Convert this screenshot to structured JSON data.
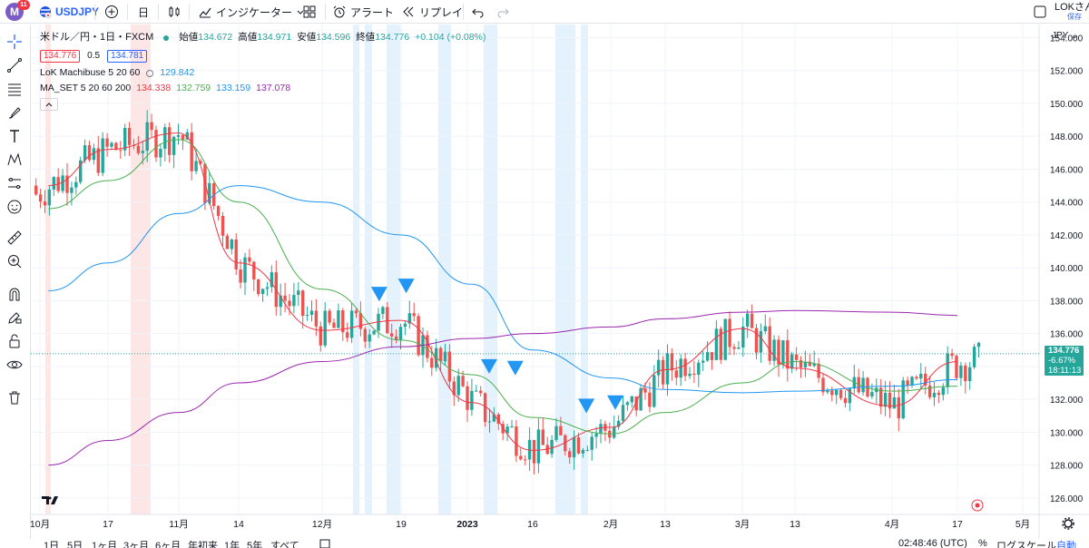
{
  "topbar": {
    "avatar_letter": "M",
    "notification_count": "11",
    "symbol": "USDJPY",
    "interval": "日",
    "indicators_label": "インジケーター",
    "alert_label": "アラート",
    "replay_label": "リプレイ",
    "user_name": "LOKさん",
    "save_label": "保存"
  },
  "legend": {
    "title": "米ドル／円・1日・FXCM",
    "open_label": "始値",
    "open": "134.672",
    "high_label": "高値",
    "high": "134.971",
    "low_label": "安値",
    "low": "134.596",
    "close_label": "終値",
    "close": "134.776",
    "change": "+0.104 (+0.08%)",
    "bid": "134.776",
    "spread": "0.5",
    "ask": "134.781",
    "ind1_name": "LoK Machibuse 5 20 60",
    "ind1_value": "129.842",
    "ind2_name": "MA_SET 5 20 60 200",
    "ind2_v1": "134.338",
    "ind2_v2": "132.759",
    "ind2_v3": "133.159",
    "ind2_v4": "137.078",
    "collapse_icon": "chevron-up-icon"
  },
  "price_axis": {
    "currency": "JPY",
    "ticks": [
      "154.000",
      "152.000",
      "150.000",
      "148.000",
      "146.000",
      "144.000",
      "142.000",
      "140.000",
      "138.000",
      "136.000",
      "134.000",
      "132.000",
      "130.000",
      "128.000",
      "126.000"
    ],
    "last_price": "134.776",
    "last_change": "-6.67%",
    "countdown": "18:11:13"
  },
  "time_axis": {
    "labels": [
      "10月",
      "17",
      "11月",
      "14",
      "12月",
      "19",
      "2023",
      "16",
      "2月",
      "13",
      "3月",
      "13",
      "4月",
      "17",
      "5月"
    ]
  },
  "bottombar": {
    "ranges": [
      "1日",
      "5日",
      "1ヶ月",
      "3ヶ月",
      "6ヶ月",
      "年初来",
      "1年",
      "5年",
      "すべて"
    ],
    "clock": "02:48:46 (UTC)",
    "percent": "%",
    "log_label": "ログスケール",
    "auto_label": "自動"
  },
  "colors": {
    "up": "#26a69a",
    "down": "#ef5350",
    "ma5": "#f23645",
    "ma20": "#4caf50",
    "ma60": "#2196f3",
    "ma200": "#9c27b0",
    "marker": "#2196f3"
  },
  "chart_data": {
    "type": "candlestick",
    "symbol": "USDJPY",
    "timeframe": "1D",
    "ylim": [
      125,
      154.8
    ],
    "series": [
      {
        "name": "5",
        "x": [
          "2022-10-03",
          "2022-10-17",
          "2022-11-01",
          "2022-11-14",
          "2022-12-01",
          "2022-12-19",
          "2023-01-02",
          "2023-01-16",
          "2023-02-01",
          "2023-02-13",
          "2023-03-01",
          "2023-03-13",
          "2023-04-03",
          "2023-04-17"
        ],
        "values": [
          145.0,
          147.2,
          148.2,
          140.3,
          136.2,
          136.8,
          131.8,
          128.9,
          130.3,
          133.8,
          136.3,
          133.9,
          131.6,
          134.3
        ]
      },
      {
        "name": "20",
        "x": [
          "2022-10-03",
          "2022-10-17",
          "2022-11-01",
          "2022-11-14",
          "2022-12-01",
          "2022-12-19",
          "2023-01-02",
          "2023-01-16",
          "2023-02-01",
          "2023-02-13",
          "2023-03-01",
          "2023-03-13",
          "2023-04-03",
          "2023-04-17"
        ],
        "values": [
          143.6,
          145.3,
          147.8,
          144.0,
          138.7,
          135.6,
          133.5,
          130.9,
          129.9,
          131.2,
          133.0,
          134.3,
          132.5,
          132.8
        ]
      },
      {
        "name": "60",
        "x": [
          "2022-10-03",
          "2022-10-17",
          "2022-11-01",
          "2022-11-14",
          "2022-12-01",
          "2022-12-19",
          "2023-01-02",
          "2023-01-16",
          "2023-02-01",
          "2023-02-13",
          "2023-03-01",
          "2023-03-13",
          "2023-04-03",
          "2023-04-17"
        ],
        "values": [
          138.6,
          140.3,
          143.3,
          145.0,
          144.0,
          142.0,
          139.0,
          135.0,
          133.3,
          132.6,
          132.4,
          132.5,
          132.8,
          133.2
        ]
      },
      {
        "name": "200",
        "x": [
          "2022-10-03",
          "2022-10-17",
          "2022-11-01",
          "2022-11-14",
          "2022-12-01",
          "2022-12-19",
          "2023-01-02",
          "2023-01-16",
          "2023-02-01",
          "2023-02-13",
          "2023-03-01",
          "2023-03-13",
          "2023-04-03",
          "2023-04-17"
        ],
        "values": [
          128.0,
          129.5,
          131.2,
          133.0,
          134.3,
          135.2,
          135.7,
          136.0,
          136.4,
          136.9,
          137.3,
          137.4,
          137.3,
          137.1
        ]
      }
    ],
    "markers": [
      {
        "type": "triangle-down",
        "x": "2022-12-14",
        "y": 138.4
      },
      {
        "type": "triangle-down",
        "x": "2022-12-20",
        "y": 138.9
      },
      {
        "type": "triangle-down",
        "x": "2023-01-06",
        "y": 134.0
      },
      {
        "type": "triangle-down",
        "x": "2023-01-12",
        "y": 133.9
      },
      {
        "type": "triangle-down",
        "x": "2023-01-27",
        "y": 131.6
      },
      {
        "type": "triangle-down",
        "x": "2023-02-02",
        "y": 131.8
      }
    ],
    "last_price": 134.776,
    "grid": true
  }
}
